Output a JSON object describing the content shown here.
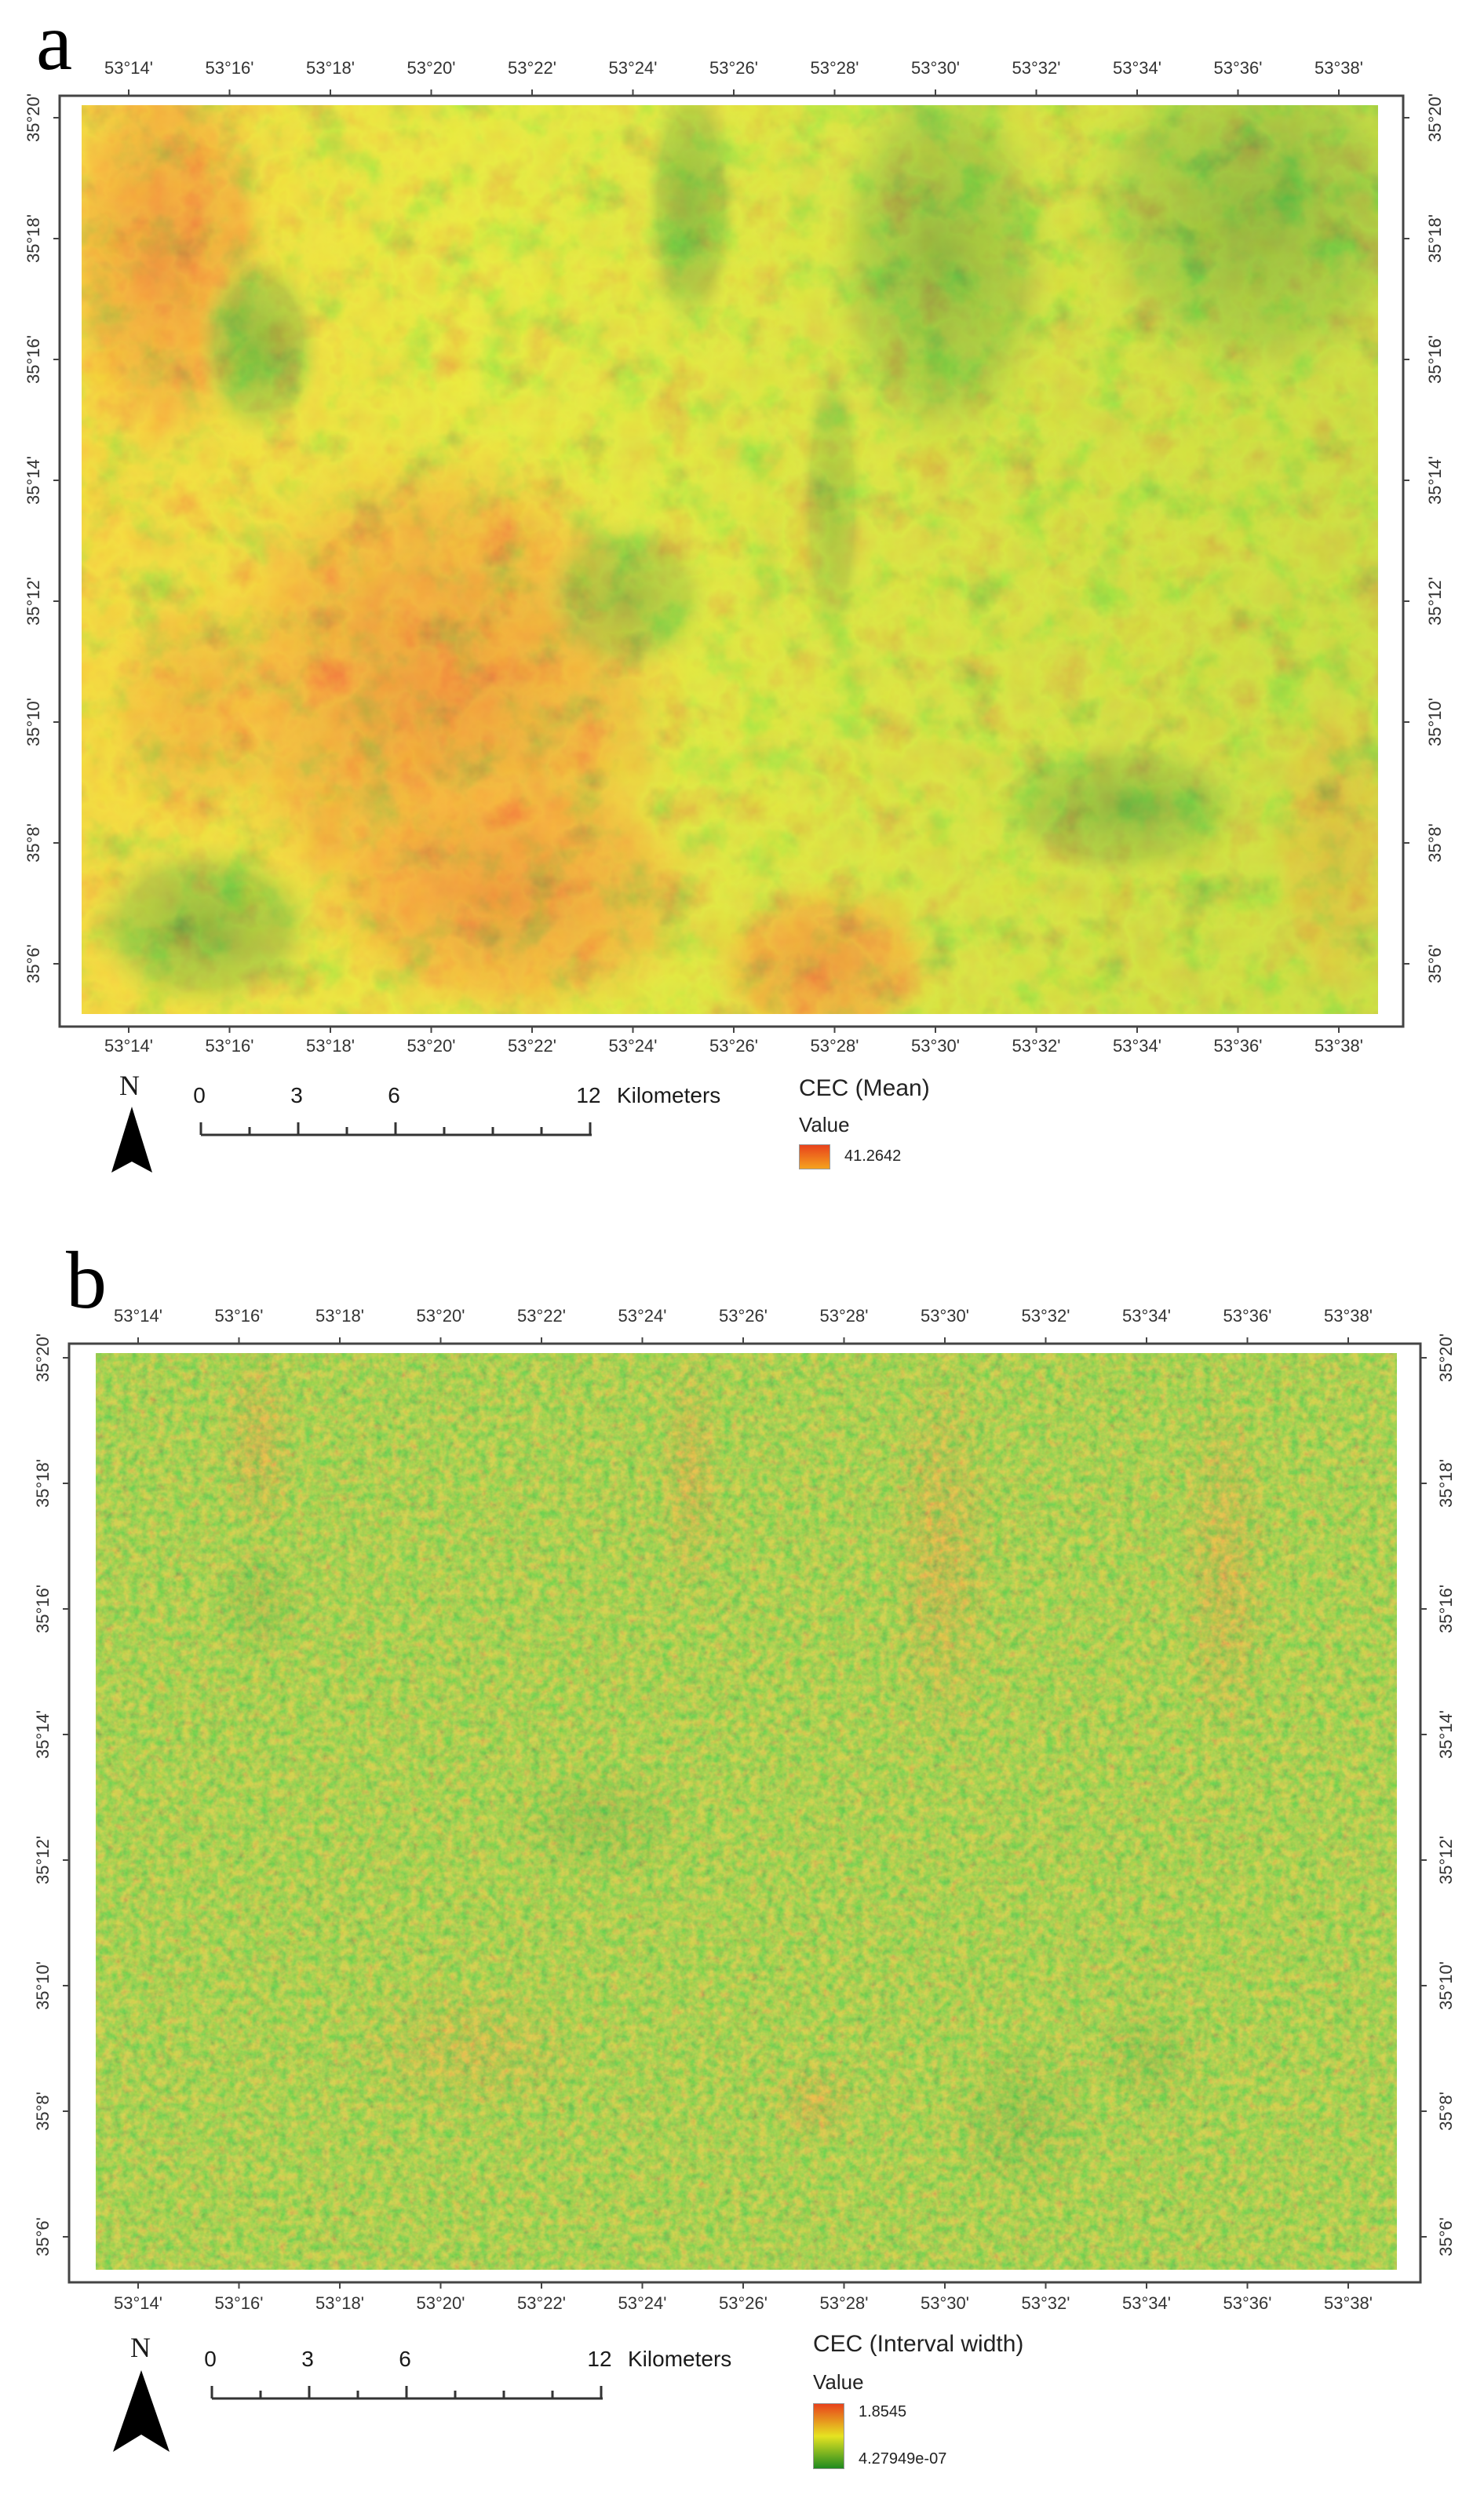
{
  "panels": [
    {
      "letter": "a",
      "top_longitudes": [
        "53°14'",
        "53°16'",
        "53°18'",
        "53°20'",
        "53°22'",
        "53°24'",
        "53°26'",
        "53°28'",
        "53°30'",
        "53°32'",
        "53°34'",
        "53°36'",
        "53°38'"
      ],
      "bottom_longitudes": [
        "53°14'",
        "53°16'",
        "53°18'",
        "53°20'",
        "53°22'",
        "53°24'",
        "53°26'",
        "53°28'",
        "53°30'",
        "53°32'",
        "53°34'",
        "53°36'",
        "53°38'"
      ],
      "latitudes": [
        "35°20'",
        "35°18'",
        "35°16'",
        "35°14'",
        "35°12'",
        "35°10'",
        "35°8'",
        "35°6'"
      ],
      "legend": {
        "title": "CEC (Mean)",
        "value_label": "Value",
        "high": "41.2642",
        "low": ""
      },
      "north_label": "N",
      "scale": {
        "ticks": [
          "0",
          "3",
          "6",
          "12"
        ],
        "unit": "Kilometers"
      },
      "colors": {
        "high": "#e8421c",
        "mid": "#e6e321",
        "low": "#1f8a1f"
      }
    },
    {
      "letter": "b",
      "top_longitudes": [
        "53°14'",
        "53°16'",
        "53°18'",
        "53°20'",
        "53°22'",
        "53°24'",
        "53°26'",
        "53°28'",
        "53°30'",
        "53°32'",
        "53°34'",
        "53°36'",
        "53°38'"
      ],
      "bottom_longitudes": [
        "53°14'",
        "53°16'",
        "53°18'",
        "53°20'",
        "53°22'",
        "53°24'",
        "53°26'",
        "53°28'",
        "53°30'",
        "53°32'",
        "53°34'",
        "53°36'",
        "53°38'"
      ],
      "latitudes": [
        "35°20'",
        "35°18'",
        "35°16'",
        "35°14'",
        "35°12'",
        "35°10'",
        "35°8'",
        "35°6'"
      ],
      "legend": {
        "title": "CEC (Interval width)",
        "value_label": "Value",
        "high": "1.8545",
        "low": "4.27949e-07"
      },
      "north_label": "N",
      "scale": {
        "ticks": [
          "0",
          "3",
          "6",
          "12"
        ],
        "unit": "Kilometers"
      },
      "colors": {
        "high": "#e8421c",
        "mid": "#e6e321",
        "low": "#1f8a1f"
      }
    }
  ]
}
